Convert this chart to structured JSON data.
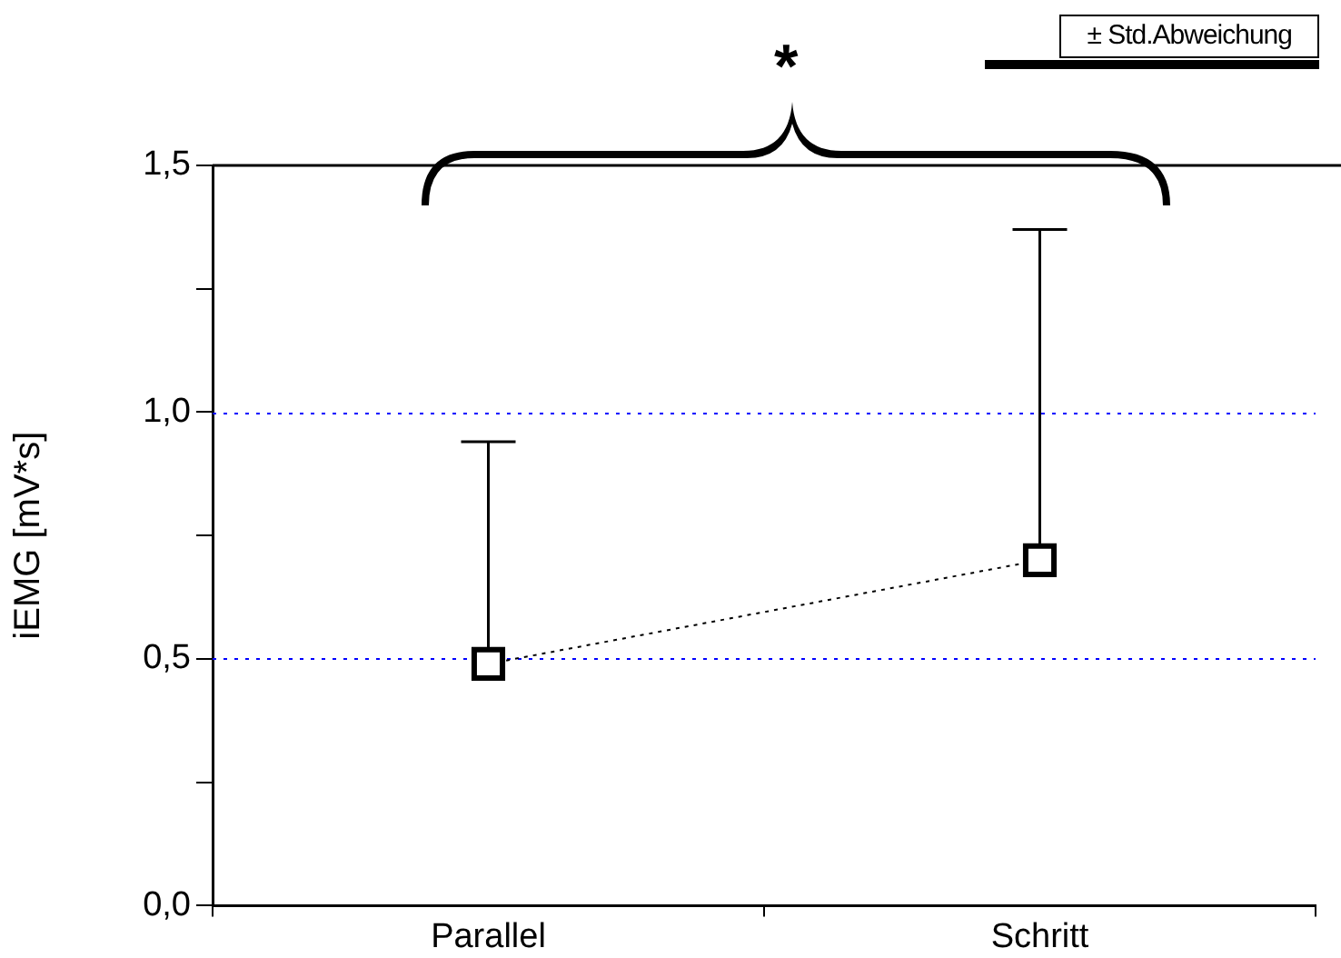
{
  "chart_data": {
    "type": "line",
    "ylabel": "iEMG [mV*s]",
    "categories": [
      "Parallel",
      "Schritt"
    ],
    "series": [
      {
        "name": "± Std.Abweichung",
        "color": "#000000",
        "values": [
          0.49,
          0.7
        ],
        "errors": [
          [
            0.49,
            0.94
          ],
          [
            0.7,
            1.37
          ]
        ]
      }
    ],
    "ylim": [
      0,
      1.5
    ],
    "yticks": [
      {
        "value": 0,
        "label": "0,0"
      },
      {
        "value": 0.25,
        "label": null
      },
      {
        "value": 0.5,
        "label": "0,5"
      },
      {
        "value": 0.75,
        "label": null
      },
      {
        "value": 1,
        "label": "1,0"
      },
      {
        "value": 1.25,
        "label": null
      },
      {
        "value": 1.5,
        "label": "1,5"
      }
    ],
    "grid": "y",
    "legend": "top right",
    "marker": "square",
    "line_style": "dotted",
    "annotations": [
      "*"
    ]
  }
}
